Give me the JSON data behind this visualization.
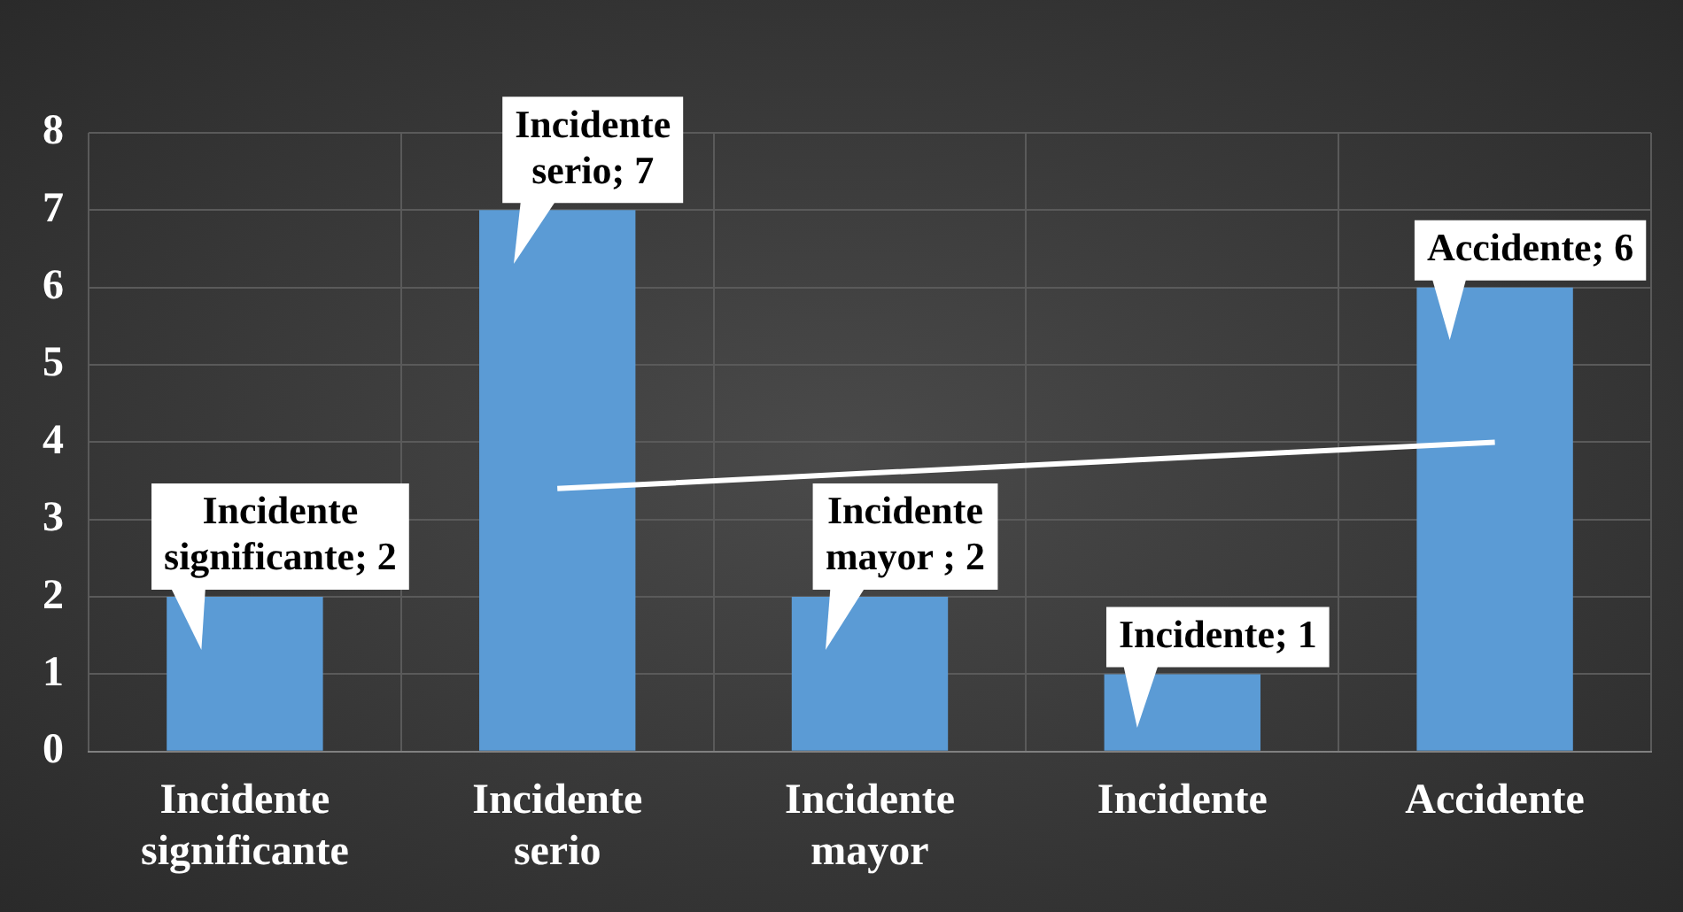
{
  "chart_data": {
    "type": "bar",
    "categories": [
      "Incidente significante",
      "Incidente serio",
      "Incidente mayor",
      "Incidente",
      "Accidente"
    ],
    "series": [
      {
        "color": "#5b9bd5",
        "values": [
          2,
          7,
          2,
          1,
          6
        ],
        "value_labels": [
          "Incidente significante; 2",
          "Incidente serio; 7",
          "Incidente mayor ; 2",
          "Incidente; 1",
          "Accidente; 6"
        ]
      },
      {
        "type": "line",
        "color": "#ffffff",
        "values": [
          null,
          3.4,
          3.6,
          3.8,
          4.0
        ],
        "marker": "none"
      }
    ],
    "ylim": [
      0,
      8
    ],
    "yticks": [
      0,
      1,
      2,
      3,
      4,
      5,
      6,
      7,
      8
    ],
    "grid": true,
    "legend": false
  }
}
